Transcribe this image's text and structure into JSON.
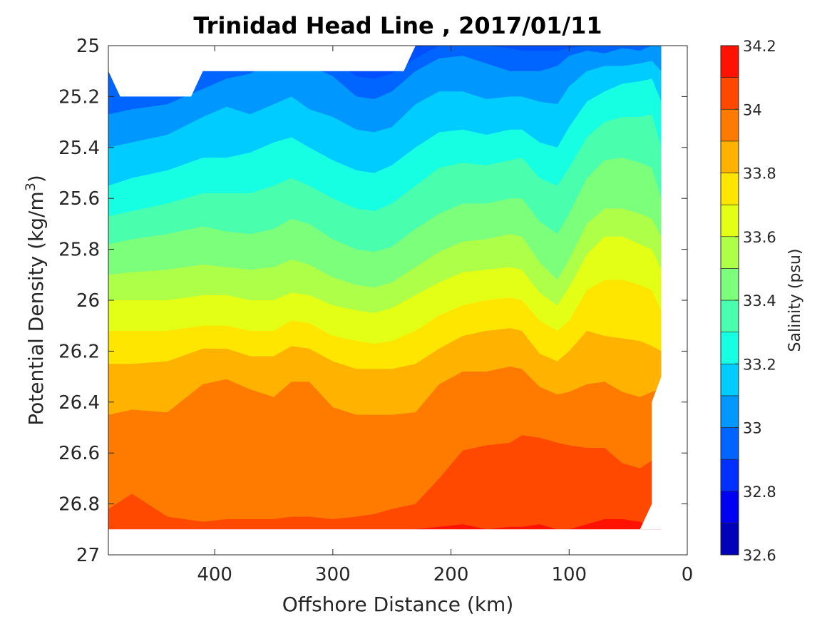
{
  "chart_data": {
    "type": "contour",
    "title": "Trinidad Head Line , 2017/01/11",
    "xlabel": "Offshore Distance (km)",
    "ylabel_prefix": "Potential Density (kg/m",
    "ylabel_sup": "3",
    "ylabel_suffix": ")",
    "colorbar_label": "Salinity (psu)",
    "x_axis": {
      "range": [
        490,
        0
      ],
      "reversed": true,
      "ticks": [
        400,
        300,
        200,
        100,
        0
      ]
    },
    "y_axis": {
      "range": [
        25,
        27
      ],
      "reversed": true,
      "ticks": [
        25,
        25.2,
        25.4,
        25.6,
        25.8,
        26,
        26.2,
        26.4,
        26.6,
        26.8,
        27
      ],
      "tick_labels": [
        "25",
        "25.2",
        "25.4",
        "25.6",
        "25.8",
        "26",
        "26.2",
        "26.4",
        "26.6",
        "26.8",
        "27"
      ]
    },
    "colorbar": {
      "range": [
        32.6,
        34.2
      ],
      "ticks": [
        32.6,
        32.8,
        33,
        33.2,
        33.4,
        33.6,
        33.8,
        34,
        34.2
      ],
      "tick_labels": [
        "32.6",
        "32.8",
        "33",
        "33.2",
        "33.4",
        "33.6",
        "33.8",
        "34",
        "34.2"
      ],
      "levels": [
        32.6,
        32.7,
        32.8,
        32.9,
        33.0,
        33.1,
        33.2,
        33.3,
        33.4,
        33.5,
        33.6,
        33.7,
        33.8,
        33.9,
        34.0,
        34.1,
        34.2
      ],
      "colors": [
        "#000080",
        "#0000b8",
        "#0000f2",
        "#0030ff",
        "#0064ff",
        "#0098ff",
        "#00ccff",
        "#17ffe2",
        "#49ffad",
        "#7cff7b",
        "#aeff48",
        "#e2ff15",
        "#ffe600",
        "#ffb200",
        "#ff7b00",
        "#ff4800",
        "#ff1300",
        "#e00000",
        "#a60000"
      ]
    },
    "data_extent": {
      "x_min": 22,
      "x_max": 490,
      "y_top": 25,
      "y_bottom": 26.9
    },
    "x": [
      490,
      470,
      440,
      410,
      390,
      370,
      350,
      335,
      320,
      300,
      280,
      265,
      250,
      230,
      210,
      190,
      170,
      150,
      140,
      125,
      110,
      100,
      85,
      70,
      55,
      40,
      30,
      22
    ],
    "salinity_isolines": [
      {
        "level": 32.9,
        "y": [
          25.12,
          25.17,
          25.16,
          25.1,
          25.06,
          25.04,
          25.03,
          25.02,
          25.03,
          25.06,
          25.12,
          25.13,
          25.11,
          25.05,
          25.0,
          25.0,
          25.0,
          25.01,
          25.02,
          25.02,
          25.02,
          25.01,
          25.0,
          25.0,
          25.0,
          25.0,
          25.0,
          25.0
        ]
      },
      {
        "level": 33.0,
        "y": [
          25.27,
          25.25,
          25.23,
          25.17,
          25.13,
          25.11,
          25.06,
          25.05,
          25.08,
          25.12,
          25.2,
          25.21,
          25.18,
          25.1,
          25.05,
          25.04,
          25.07,
          25.1,
          25.1,
          25.1,
          25.08,
          25.04,
          25.02,
          25.03,
          25.01,
          25.02,
          25.0,
          25.0
        ]
      },
      {
        "level": 33.1,
        "y": [
          25.4,
          25.38,
          25.35,
          25.28,
          25.24,
          25.27,
          25.23,
          25.2,
          25.25,
          25.28,
          25.33,
          25.34,
          25.32,
          25.23,
          25.18,
          25.18,
          25.21,
          25.2,
          25.2,
          25.22,
          25.23,
          25.16,
          25.1,
          25.08,
          25.08,
          25.07,
          25.06,
          25.1
        ]
      },
      {
        "level": 33.2,
        "y": [
          25.55,
          25.52,
          25.49,
          25.44,
          25.44,
          25.42,
          25.38,
          25.36,
          25.4,
          25.45,
          25.49,
          25.5,
          25.47,
          25.4,
          25.34,
          25.33,
          25.35,
          25.33,
          25.33,
          25.38,
          25.4,
          25.32,
          25.22,
          25.18,
          25.15,
          25.14,
          25.13,
          25.22
        ]
      },
      {
        "level": 33.3,
        "y": [
          25.67,
          25.65,
          25.62,
          25.58,
          25.58,
          25.58,
          25.55,
          25.52,
          25.55,
          25.6,
          25.64,
          25.65,
          25.62,
          25.55,
          25.48,
          25.46,
          25.47,
          25.45,
          25.44,
          25.52,
          25.55,
          25.48,
          25.36,
          25.3,
          25.28,
          25.28,
          25.27,
          25.4
        ]
      },
      {
        "level": 33.4,
        "y": [
          25.78,
          25.76,
          25.74,
          25.71,
          25.73,
          25.74,
          25.72,
          25.68,
          25.7,
          25.76,
          25.8,
          25.81,
          25.79,
          25.72,
          25.66,
          25.62,
          25.62,
          25.6,
          25.6,
          25.69,
          25.74,
          25.66,
          25.52,
          25.45,
          25.44,
          25.46,
          25.48,
          25.6
        ]
      },
      {
        "level": 33.5,
        "y": [
          25.9,
          25.89,
          25.88,
          25.86,
          25.87,
          25.88,
          25.87,
          25.84,
          25.86,
          25.91,
          25.94,
          25.95,
          25.93,
          25.87,
          25.81,
          25.77,
          25.76,
          25.74,
          25.75,
          25.85,
          25.92,
          25.84,
          25.7,
          25.64,
          25.64,
          25.66,
          25.68,
          25.75
        ]
      },
      {
        "level": 33.6,
        "y": [
          26.0,
          26.0,
          26.0,
          25.98,
          25.98,
          26.0,
          26.0,
          25.97,
          25.98,
          26.02,
          26.04,
          26.05,
          26.03,
          25.98,
          25.93,
          25.89,
          25.88,
          25.87,
          25.88,
          25.97,
          26.02,
          25.95,
          25.82,
          25.75,
          25.75,
          25.78,
          25.8,
          25.88
        ]
      },
      {
        "level": 33.7,
        "y": [
          26.12,
          26.12,
          26.12,
          26.1,
          26.1,
          26.12,
          26.12,
          26.08,
          26.09,
          26.14,
          26.16,
          26.17,
          26.16,
          26.12,
          26.06,
          26.02,
          26.0,
          25.99,
          26.0,
          26.08,
          26.12,
          26.08,
          25.96,
          25.92,
          25.92,
          25.94,
          25.96,
          26.04
        ]
      },
      {
        "level": 33.8,
        "y": [
          26.25,
          26.25,
          26.24,
          26.19,
          26.19,
          26.22,
          26.22,
          26.18,
          26.19,
          26.24,
          26.27,
          26.27,
          26.27,
          26.25,
          26.19,
          26.14,
          26.12,
          26.11,
          26.12,
          26.21,
          26.24,
          26.2,
          26.12,
          26.14,
          26.15,
          26.16,
          26.18,
          26.2
        ]
      },
      {
        "level": 33.9,
        "y": [
          26.45,
          26.43,
          26.44,
          26.33,
          26.31,
          26.35,
          26.38,
          26.32,
          26.32,
          26.42,
          26.45,
          26.45,
          26.45,
          26.44,
          26.33,
          26.28,
          26.28,
          26.26,
          26.27,
          26.34,
          26.37,
          26.36,
          26.33,
          26.32,
          26.36,
          26.38,
          26.36,
          26.35
        ]
      },
      {
        "level": 34.0,
        "y": [
          26.82,
          26.76,
          26.85,
          26.87,
          26.86,
          26.86,
          26.86,
          26.85,
          26.85,
          26.86,
          26.85,
          26.84,
          26.82,
          26.8,
          26.7,
          26.59,
          26.57,
          26.56,
          26.53,
          26.54,
          26.56,
          26.57,
          26.58,
          26.58,
          26.64,
          26.66,
          26.63,
          26.7
        ]
      },
      {
        "level": 34.1,
        "y": [
          26.9,
          26.9,
          26.9,
          26.9,
          26.9,
          26.9,
          26.9,
          26.9,
          26.9,
          26.9,
          26.9,
          26.9,
          26.9,
          26.9,
          26.89,
          26.88,
          26.9,
          26.89,
          26.89,
          26.88,
          26.9,
          26.9,
          26.88,
          26.86,
          26.86,
          26.87,
          26.89,
          26.9
        ]
      }
    ],
    "mask_polygons": [
      {
        "name": "upper-left-gap",
        "points": [
          [
            490,
            25
          ],
          [
            490,
            25.1
          ],
          [
            480,
            25.2
          ],
          [
            420,
            25.2
          ],
          [
            410,
            25.1
          ],
          [
            240,
            25.1
          ],
          [
            230,
            25
          ],
          [
            490,
            25
          ]
        ]
      },
      {
        "name": "right-edge-gap",
        "points": [
          [
            22,
            25.1
          ],
          [
            22,
            26.3
          ],
          [
            30,
            26.4
          ],
          [
            30,
            26.8
          ],
          [
            40,
            26.9
          ],
          [
            0,
            26.9
          ],
          [
            0,
            25
          ],
          [
            22,
            25
          ]
        ]
      },
      {
        "name": "bottom-gap",
        "points": [
          [
            490,
            26.9
          ],
          [
            0,
            26.9
          ],
          [
            0,
            27
          ],
          [
            490,
            27
          ]
        ]
      }
    ]
  }
}
